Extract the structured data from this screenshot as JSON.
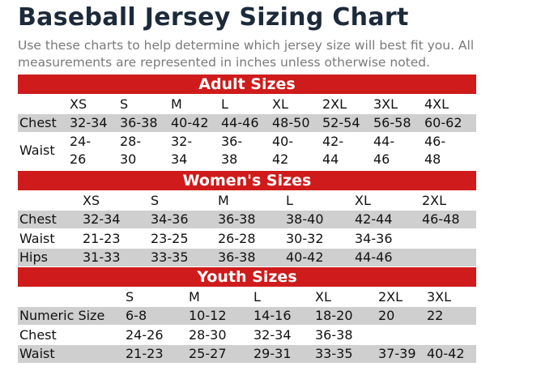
{
  "title": "Baseball Jersey Sizing Chart",
  "subtitle": "Use these charts to help determine which jersey size will best fit you. All measurements are represented in inches unless otherwise noted.",
  "adult": {
    "heading": "Adult Sizes",
    "sizes": [
      "XS",
      "S",
      "M",
      "L",
      "XL",
      "2XL",
      "3XL",
      "4XL"
    ],
    "chest": {
      "label": "Chest",
      "values": [
        "32-34",
        "36-38",
        "40-42",
        "44-46",
        "48-50",
        "52-54",
        "56-58",
        "60-62"
      ]
    },
    "waist": {
      "label": "Waist",
      "top": [
        "24-",
        "28-",
        "32-",
        "36-",
        "40-",
        "42-",
        "44-",
        "46-"
      ],
      "bottom": [
        "26",
        "30",
        "34",
        "38",
        "42",
        "44",
        "46",
        "48"
      ]
    }
  },
  "women": {
    "heading": "Women's Sizes",
    "sizes": [
      "XS",
      "S",
      "M",
      "L",
      "XL",
      "2XL"
    ],
    "rows": [
      {
        "label": "Chest",
        "values": [
          "32-34",
          "34-36",
          "36-38",
          "38-40",
          "42-44",
          "46-48"
        ]
      },
      {
        "label": "Waist",
        "values": [
          "21-23",
          "23-25",
          "26-28",
          "30-32",
          "34-36",
          ""
        ]
      },
      {
        "label": "Hips",
        "values": [
          "31-33",
          "33-35",
          "36-38",
          "40-42",
          "44-46",
          ""
        ]
      }
    ]
  },
  "youth": {
    "heading": "Youth Sizes",
    "sizes": [
      "S",
      "M",
      "L",
      "XL",
      "2XL",
      "3XL"
    ],
    "rows": [
      {
        "label": "Numeric Size",
        "values": [
          "6-8",
          "10-12",
          "14-16",
          "18-20",
          "20",
          "22"
        ]
      },
      {
        "label": "Chest",
        "values": [
          "24-26",
          "28-30",
          "32-34",
          "36-38",
          "",
          ""
        ]
      },
      {
        "label": "Waist",
        "values": [
          "21-23",
          "25-27",
          "29-31",
          "33-35",
          "37-39",
          "40-42"
        ]
      }
    ]
  }
}
